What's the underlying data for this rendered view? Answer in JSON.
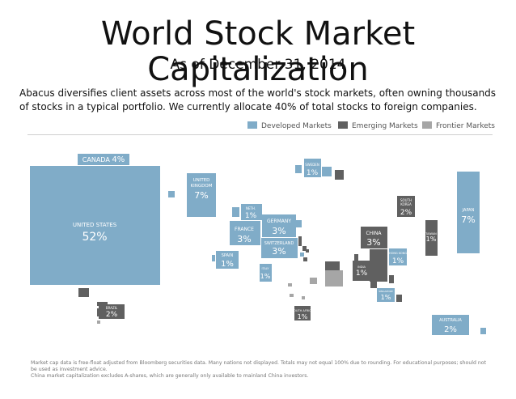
{
  "header": {
    "title": "World Stock Market Capitalization",
    "subtitle": "As of December 31, 2014",
    "intro": "Abacus diversifies client assets across most of the world's stock markets, often owning thousands of stocks in a typical portfolio. We currently allocate 40% of total stocks to foreign companies."
  },
  "legend": {
    "developed": "Developed Markets",
    "emerging": "Emerging Markets",
    "frontier": "Frontier Markets",
    "colors": {
      "developed": "#80acc8",
      "emerging": "#606060",
      "frontier": "#a6a6a6"
    }
  },
  "markets": {
    "us": {
      "name": "UNITED STATES",
      "pct": "52%"
    },
    "canada": {
      "name": "CANADA",
      "pct": "4%"
    },
    "uk": {
      "name": "UNITED KINGDOM",
      "pct": "7%"
    },
    "sweden": {
      "name": "SWEDEN",
      "pct": "1%"
    },
    "germany": {
      "name": "GERMANY",
      "pct": "3%"
    },
    "france": {
      "name": "FRANCE",
      "pct": "3%"
    },
    "switzerland": {
      "name": "SWITZERLAND",
      "pct": "3%"
    },
    "spain": {
      "name": "SPAIN",
      "pct": "1%"
    },
    "italy": {
      "name": "ITALY",
      "pct": "1%"
    },
    "brazil": {
      "name": "BRAZIL",
      "pct": "2%"
    },
    "south_africa": {
      "name": "SOUTH AFRICA",
      "pct": "1%"
    },
    "china": {
      "name": "CHINA",
      "pct": "3%"
    },
    "india": {
      "name": "INDIA",
      "pct": "1%"
    },
    "hong_kong": {
      "name": "HONG KONG",
      "pct": "1%"
    },
    "south_korea": {
      "name": "SOUTH KOREA",
      "pct": "2%"
    },
    "taiwan": {
      "name": "TAIWAN",
      "pct": "1%"
    },
    "japan": {
      "name": "JAPAN",
      "pct": "7%"
    },
    "singapore": {
      "name": "SINGAPORE",
      "pct": "1%"
    },
    "australia": {
      "name": "AUSTRALIA",
      "pct": "2%"
    },
    "netherlands": {
      "name": "NETH.",
      "pct": "1%"
    }
  },
  "footnote": {
    "line1": "Market cap data is free-float adjusted from Bloomberg securities data. Many nations not displayed. Totals may not equal 100% due to rounding. For educational purposes; should not be used as investment advice.",
    "line2": "China market capitalization excludes A-shares, which are generally only available to mainland China investors."
  }
}
